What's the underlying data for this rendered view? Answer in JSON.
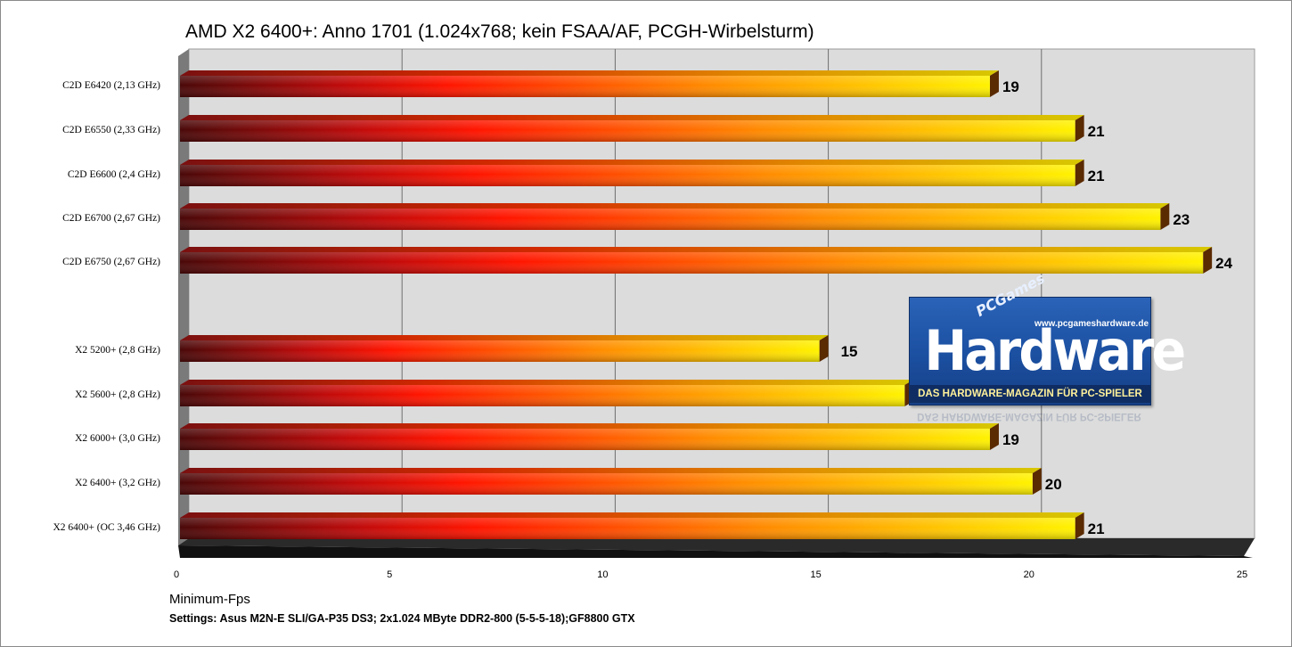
{
  "chart_data": {
    "type": "bar",
    "orientation": "horizontal",
    "title": "AMD X2 6400+: Anno 1701 (1.024x768; kein FSAA/AF, PCGH-Wirbelsturm)",
    "xlabel": "Minimum-Fps",
    "xlim": [
      0,
      25
    ],
    "xticks": [
      "0",
      "5",
      "10",
      "15",
      "20",
      "25"
    ],
    "grid": true,
    "groups": [
      {
        "categories": [
          "C2D E6420  (2,13  GHz)",
          "C2D E6550  (2,33  GHz)",
          "C2D E6600  (2,4  GHz)",
          "C2D E6700  (2,67  GHz)",
          "C2D E6750  (2,67  GHz)"
        ],
        "values": [
          19,
          21,
          21,
          23,
          24
        ],
        "labels": [
          "19",
          "21",
          "21",
          "23",
          "24"
        ]
      },
      {
        "categories": [
          "X2 5200+  (2,8  GHz)",
          "X2 5600+  (2,8  GHz)",
          "X2 6000+  (3,0  GHz)",
          "X2 6400+  (3,2  GHz)",
          "X2 6400+  (OC 3,46  GHz)"
        ],
        "values": [
          15,
          17,
          19,
          20,
          21
        ],
        "labels": [
          "15",
          "17",
          "19",
          "20",
          "21"
        ]
      }
    ],
    "colors": {
      "bar_start": "#5a0a0a",
      "bar_mid": "#ff1a00",
      "bar_end": "#ffee00",
      "plot_bg": "#dcdcdc",
      "grid": "#7a7a7a"
    }
  },
  "footer": {
    "settings": "Settings:  Asus M2N-E SLI/GA-P35 DS3;  2x1.024 MByte DDR2-800 (5-5-5-18);GF8800  GTX"
  },
  "logo": {
    "brand": "PC Games Hardware",
    "pc": "PC",
    "games": "Games",
    "word": "Hardware",
    "url": "www.pcgameshardware.de",
    "tagline": "DAS HARDWARE-MAGAZIN FÜR PC-SPIELER",
    "icon": "pcgh-logo-icon"
  }
}
